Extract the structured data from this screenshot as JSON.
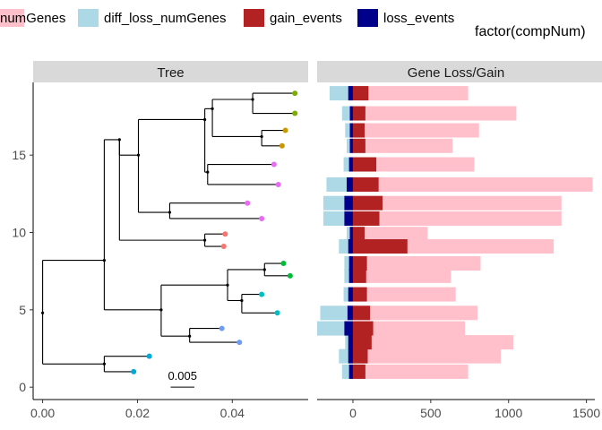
{
  "legend": {
    "items": [
      {
        "label": "numGenes",
        "color": "#FFC0CB"
      },
      {
        "label": "diff_loss_numGenes",
        "color": "#ADD8E6"
      },
      {
        "label": "gain_events",
        "color": "#B22222"
      },
      {
        "label": "loss_events",
        "color": "#00008B"
      }
    ],
    "right_title": "factor(compNum)"
  },
  "chart_data": [
    {
      "type": "tree",
      "panel_title": "Tree",
      "xlim": [
        -0.002,
        0.056
      ],
      "ylim": [
        -0.8,
        19.7
      ],
      "x_ticks": [
        {
          "value": 0.0,
          "label": "0.00"
        },
        {
          "value": 0.02,
          "label": "0.02"
        },
        {
          "value": 0.04,
          "label": "0.04"
        }
      ],
      "y_ticks": [
        {
          "value": 0,
          "label": "0"
        },
        {
          "value": 5,
          "label": "5"
        },
        {
          "value": 10,
          "label": "10"
        },
        {
          "value": 15,
          "label": "15"
        }
      ],
      "scale_bar": {
        "label": "0.005",
        "x_start": 0.027,
        "length": 0.005,
        "y": 0.0
      },
      "edges": [
        [
          0.0,
          4.8,
          0.0,
          1.5
        ],
        [
          0.0,
          1.5,
          0.013,
          1.5
        ],
        [
          0.013,
          1.5,
          0.013,
          1.0
        ],
        [
          0.013,
          1.0,
          0.0192,
          1.0
        ],
        [
          0.013,
          1.5,
          0.013,
          2.0
        ],
        [
          0.013,
          2.0,
          0.0225,
          2.0
        ],
        [
          0.0,
          4.8,
          0.0,
          8.2
        ],
        [
          0.0,
          8.2,
          0.013,
          8.2
        ],
        [
          0.013,
          8.2,
          0.013,
          5.0
        ],
        [
          0.013,
          5.0,
          0.025,
          5.0
        ],
        [
          0.025,
          5.0,
          0.025,
          3.3
        ],
        [
          0.025,
          3.3,
          0.031,
          3.3
        ],
        [
          0.031,
          3.3,
          0.031,
          2.9
        ],
        [
          0.031,
          2.9,
          0.0415,
          2.9
        ],
        [
          0.031,
          3.3,
          0.031,
          3.8
        ],
        [
          0.031,
          3.8,
          0.0378,
          3.8
        ],
        [
          0.025,
          5.0,
          0.025,
          6.6
        ],
        [
          0.025,
          6.6,
          0.039,
          6.6
        ],
        [
          0.039,
          6.6,
          0.039,
          5.6
        ],
        [
          0.039,
          5.6,
          0.042,
          5.6
        ],
        [
          0.042,
          5.6,
          0.042,
          6.0
        ],
        [
          0.042,
          6.0,
          0.0462,
          6.0
        ],
        [
          0.042,
          5.6,
          0.042,
          4.8
        ],
        [
          0.042,
          4.8,
          0.0495,
          4.8
        ],
        [
          0.039,
          6.6,
          0.039,
          7.6
        ],
        [
          0.039,
          7.6,
          0.0468,
          7.6
        ],
        [
          0.0468,
          7.6,
          0.0468,
          7.2
        ],
        [
          0.0468,
          7.2,
          0.0522,
          7.2
        ],
        [
          0.0468,
          7.6,
          0.0468,
          8.0
        ],
        [
          0.0468,
          8.0,
          0.0508,
          8.0
        ],
        [
          0.013,
          8.2,
          0.013,
          16.0
        ],
        [
          0.013,
          16.0,
          0.0162,
          16.0
        ],
        [
          0.0162,
          16.0,
          0.0162,
          9.5
        ],
        [
          0.0162,
          9.5,
          0.0342,
          9.5
        ],
        [
          0.0342,
          9.5,
          0.0342,
          9.1
        ],
        [
          0.0342,
          9.1,
          0.0382,
          9.1
        ],
        [
          0.0342,
          9.5,
          0.0342,
          9.9
        ],
        [
          0.0342,
          9.9,
          0.0385,
          9.9
        ],
        [
          0.0162,
          16.0,
          0.0162,
          15.0
        ],
        [
          0.0162,
          15.0,
          0.0202,
          15.0
        ],
        [
          0.0202,
          15.0,
          0.0202,
          11.3
        ],
        [
          0.0202,
          11.3,
          0.0268,
          11.3
        ],
        [
          0.0268,
          11.3,
          0.0268,
          11.9
        ],
        [
          0.0268,
          11.9,
          0.0432,
          11.9
        ],
        [
          0.0268,
          11.3,
          0.0268,
          10.9
        ],
        [
          0.0268,
          10.9,
          0.0462,
          10.9
        ],
        [
          0.0202,
          15.0,
          0.0202,
          17.3
        ],
        [
          0.0202,
          17.3,
          0.0342,
          17.3
        ],
        [
          0.0342,
          17.3,
          0.0342,
          13.9
        ],
        [
          0.0342,
          13.9,
          0.0348,
          13.9
        ],
        [
          0.0348,
          13.9,
          0.0348,
          14.4
        ],
        [
          0.0348,
          14.4,
          0.0488,
          14.4
        ],
        [
          0.0348,
          13.9,
          0.0348,
          13.1
        ],
        [
          0.0348,
          13.1,
          0.0497,
          13.1
        ],
        [
          0.0342,
          17.3,
          0.0342,
          18.0
        ],
        [
          0.0342,
          18.0,
          0.0358,
          18.0
        ],
        [
          0.0358,
          18.0,
          0.0358,
          16.2
        ],
        [
          0.0358,
          16.2,
          0.0462,
          16.2
        ],
        [
          0.0462,
          16.2,
          0.0462,
          16.6
        ],
        [
          0.0462,
          16.6,
          0.0512,
          16.6
        ],
        [
          0.0462,
          16.2,
          0.0462,
          15.6
        ],
        [
          0.0462,
          15.6,
          0.0505,
          15.6
        ],
        [
          0.0358,
          18.0,
          0.0358,
          18.6
        ],
        [
          0.0358,
          18.6,
          0.0443,
          18.6
        ],
        [
          0.0443,
          18.6,
          0.0443,
          17.7
        ],
        [
          0.0443,
          17.7,
          0.0532,
          17.7
        ],
        [
          0.0443,
          18.6,
          0.0443,
          19.0
        ],
        [
          0.0443,
          19.0,
          0.0532,
          19.0
        ]
      ],
      "nodes": [
        [
          0.0,
          4.8
        ],
        [
          0.013,
          1.5
        ],
        [
          0.013,
          8.2
        ],
        [
          0.025,
          5.0
        ],
        [
          0.031,
          3.3
        ],
        [
          0.039,
          6.6
        ],
        [
          0.042,
          5.6
        ],
        [
          0.0468,
          7.6
        ],
        [
          0.0162,
          16.0
        ],
        [
          0.0342,
          9.5
        ],
        [
          0.0202,
          15.0
        ],
        [
          0.0268,
          11.3
        ],
        [
          0.0342,
          17.3
        ],
        [
          0.0348,
          13.9
        ],
        [
          0.0358,
          18.0
        ],
        [
          0.0462,
          16.2
        ],
        [
          0.0443,
          18.6
        ]
      ],
      "tips": [
        {
          "x": 0.0192,
          "y": 1.0,
          "color": "#00A9D6"
        },
        {
          "x": 0.0225,
          "y": 2.0,
          "color": "#00A9D6"
        },
        {
          "x": 0.0415,
          "y": 2.9,
          "color": "#6C9CF8"
        },
        {
          "x": 0.0378,
          "y": 3.8,
          "color": "#6C9CF8"
        },
        {
          "x": 0.0495,
          "y": 4.8,
          "color": "#00BFC4"
        },
        {
          "x": 0.0462,
          "y": 6.0,
          "color": "#00BFC4"
        },
        {
          "x": 0.0522,
          "y": 7.2,
          "color": "#00BA38"
        },
        {
          "x": 0.0508,
          "y": 8.0,
          "color": "#00BA38"
        },
        {
          "x": 0.0382,
          "y": 9.1,
          "color": "#F8766D"
        },
        {
          "x": 0.0385,
          "y": 9.9,
          "color": "#F8766D"
        },
        {
          "x": 0.0462,
          "y": 10.9,
          "color": "#E76BF3"
        },
        {
          "x": 0.0432,
          "y": 11.9,
          "color": "#E76BF3"
        },
        {
          "x": 0.0497,
          "y": 13.1,
          "color": "#E76BF3"
        },
        {
          "x": 0.0488,
          "y": 14.4,
          "color": "#E76BF3"
        },
        {
          "x": 0.0505,
          "y": 15.6,
          "color": "#C99800"
        },
        {
          "x": 0.0512,
          "y": 16.6,
          "color": "#C99800"
        },
        {
          "x": 0.0532,
          "y": 17.7,
          "color": "#7CAE00"
        },
        {
          "x": 0.0532,
          "y": 19.0,
          "color": "#7CAE00"
        }
      ]
    },
    {
      "type": "bar",
      "orientation": "horizontal",
      "panel_title": "Gene Loss/Gain",
      "xlim": [
        -230,
        1600
      ],
      "ylim": [
        -0.8,
        19.7
      ],
      "x_ticks": [
        {
          "value": 0,
          "label": "0"
        },
        {
          "value": 500,
          "label": "500"
        },
        {
          "value": 1000,
          "label": "1000"
        },
        {
          "value": 1500,
          "label": "1500"
        }
      ],
      "row_y": [
        1.0,
        2.0,
        2.9,
        3.8,
        4.8,
        6.0,
        7.2,
        8.0,
        9.1,
        9.9,
        10.9,
        11.9,
        13.1,
        14.4,
        15.6,
        16.6,
        17.7,
        19.0
      ],
      "series": [
        {
          "name": "numGenes",
          "color": "#FFC0CB",
          "values": [
            740,
            950,
            1030,
            720,
            800,
            660,
            630,
            820,
            1290,
            480,
            1340,
            1340,
            1540,
            780,
            640,
            810,
            1050,
            740
          ]
        },
        {
          "name": "diff_loss_numGenes",
          "color": "#ADD8E6",
          "values": [
            -70,
            -90,
            -50,
            -230,
            -210,
            -60,
            -55,
            -55,
            -90,
            -40,
            -190,
            -190,
            -170,
            -60,
            -40,
            -50,
            -70,
            -150
          ]
        },
        {
          "name": "gain_events",
          "color": "#B22222",
          "values": [
            80,
            95,
            120,
            130,
            110,
            90,
            85,
            90,
            350,
            75,
            170,
            190,
            165,
            150,
            80,
            75,
            80,
            100
          ]
        },
        {
          "name": "loss_events",
          "color": "#00008B",
          "values": [
            -25,
            -30,
            -30,
            -55,
            -35,
            -30,
            -25,
            -25,
            -30,
            -20,
            -55,
            -55,
            -40,
            -25,
            -20,
            -20,
            -20,
            -30
          ]
        }
      ]
    }
  ]
}
